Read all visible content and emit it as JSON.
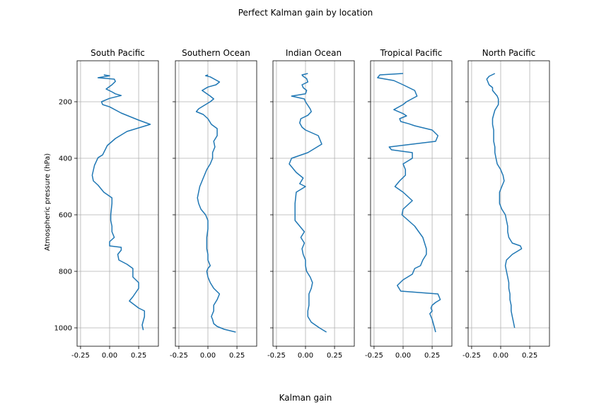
{
  "figure": {
    "suptitle": "Perfect Kalman gain by location",
    "xlabel": "Kalman gain",
    "ylabel": "Atmospheric pressure (hPa)"
  },
  "chart_data": {
    "type": "line",
    "title": "Perfect Kalman gain by location",
    "xlabel": "Kalman gain",
    "ylabel": "Atmospheric pressure (hPa)",
    "xlim": [
      -0.28,
      0.42
    ],
    "ylim": [
      1065,
      55
    ],
    "y_inverted": true,
    "xticks": [
      -0.25,
      0.0,
      0.25
    ],
    "xtick_labels": [
      "-0.25",
      "0.00",
      "0.25"
    ],
    "yticks": [
      200,
      400,
      600,
      800,
      1000
    ],
    "ytick_labels": [
      "200",
      "400",
      "600",
      "800",
      "1000"
    ],
    "grid": true,
    "color": "#1f77b4",
    "panels": [
      {
        "title": "South Pacific",
        "x": [
          -0.05,
          0.0,
          -0.1,
          0.04,
          0.05,
          0.02,
          -0.03,
          0.02,
          0.05,
          0.1,
          0.0,
          -0.07,
          -0.06,
          0.0,
          0.1,
          0.25,
          0.35,
          0.15,
          0.05,
          -0.02,
          -0.06,
          -0.1,
          -0.13,
          -0.15,
          -0.14,
          -0.1,
          -0.05,
          0.02,
          0.02,
          0.01,
          0.01,
          0.02,
          0.02,
          0.04,
          0.0,
          0.0,
          0.1,
          0.1,
          0.07,
          0.08,
          0.15,
          0.2,
          0.2,
          0.25,
          0.25,
          0.2,
          0.17,
          0.25,
          0.3,
          0.3,
          0.28,
          0.29
        ],
        "y": [
          105,
          108,
          115,
          120,
          128,
          140,
          155,
          165,
          172,
          178,
          188,
          200,
          210,
          218,
          240,
          265,
          280,
          305,
          330,
          355,
          388,
          398,
          425,
          460,
          480,
          495,
          520,
          540,
          560,
          600,
          620,
          640,
          660,
          680,
          695,
          710,
          715,
          725,
          740,
          760,
          775,
          790,
          820,
          840,
          860,
          890,
          905,
          930,
          940,
          960,
          990,
          1008
        ]
      },
      {
        "title": "Southern Ocean",
        "x": [
          0.0,
          -0.02,
          0.02,
          0.1,
          0.07,
          0.0,
          -0.05,
          0.02,
          0.05,
          0.02,
          -0.04,
          -0.08,
          -0.1,
          -0.04,
          0.0,
          0.03,
          0.08,
          0.08,
          0.05,
          0.06,
          0.04,
          0.04,
          0.02,
          -0.01,
          -0.04,
          -0.07,
          -0.09,
          -0.08,
          -0.06,
          -0.02,
          0.0,
          0.0,
          -0.01,
          -0.01,
          0.0,
          0.0,
          0.02,
          0.0,
          -0.01,
          0.0,
          0.02,
          0.05,
          0.1,
          0.08,
          0.05,
          0.05,
          0.03,
          0.04,
          0.05,
          0.08,
          0.14,
          0.24
        ],
        "y": [
          105,
          108,
          112,
          130,
          140,
          148,
          160,
          180,
          190,
          200,
          215,
          225,
          235,
          245,
          260,
          280,
          295,
          320,
          340,
          360,
          380,
          400,
          420,
          440,
          470,
          500,
          540,
          560,
          580,
          600,
          620,
          650,
          680,
          720,
          740,
          760,
          780,
          790,
          800,
          820,
          840,
          860,
          880,
          900,
          920,
          940,
          960,
          970,
          985,
          995,
          1005,
          1015
        ]
      },
      {
        "title": "Indian Ocean",
        "x": [
          0.02,
          -0.03,
          -0.02,
          0.01,
          0.02,
          -0.03,
          -0.02,
          0.01,
          0.0,
          -0.12,
          -0.01,
          0.0,
          0.04,
          0.05,
          0.02,
          -0.04,
          -0.05,
          -0.03,
          0.0,
          0.11,
          0.14,
          0.02,
          -0.12,
          -0.14,
          -0.08,
          -0.02,
          -0.05,
          0.0,
          -0.08,
          -0.09,
          -0.09,
          -0.09,
          -0.05,
          -0.01,
          -0.04,
          -0.01,
          -0.03,
          -0.02,
          0.0,
          0.0,
          0.01,
          0.04,
          0.06,
          0.05,
          0.03,
          0.03,
          0.03,
          0.02,
          0.02,
          0.05,
          0.12,
          0.18
        ],
        "y": [
          100,
          105,
          110,
          118,
          130,
          140,
          150,
          160,
          172,
          180,
          190,
          200,
          225,
          235,
          248,
          260,
          275,
          290,
          300,
          320,
          350,
          380,
          400,
          420,
          450,
          470,
          490,
          500,
          520,
          560,
          600,
          620,
          640,
          660,
          680,
          700,
          720,
          740,
          760,
          780,
          800,
          820,
          840,
          860,
          880,
          900,
          920,
          940,
          960,
          980,
          1000,
          1015
        ]
      },
      {
        "title": "Tropical Pacific",
        "x": [
          0.0,
          -0.2,
          -0.22,
          -0.08,
          0.0,
          0.1,
          0.12,
          0.03,
          0.0,
          -0.08,
          0.0,
          0.03,
          -0.03,
          -0.02,
          0.05,
          0.1,
          0.25,
          0.3,
          0.28,
          -0.12,
          -0.1,
          0.08,
          0.08,
          0.0,
          0.02,
          0.02,
          -0.03,
          -0.07,
          0.0,
          0.08,
          0.0,
          -0.01,
          0.1,
          0.17,
          0.2,
          0.2,
          0.17,
          0.15,
          0.1,
          0.08,
          0.0,
          -0.05,
          -0.02,
          0.3,
          0.32,
          0.28,
          0.25,
          0.24,
          0.25,
          0.23,
          0.25,
          0.27,
          0.28
        ],
        "y": [
          100,
          105,
          115,
          125,
          140,
          160,
          180,
          200,
          210,
          228,
          242,
          250,
          260,
          270,
          278,
          285,
          300,
          320,
          340,
          360,
          370,
          380,
          400,
          420,
          440,
          460,
          480,
          500,
          520,
          550,
          580,
          600,
          640,
          680,
          720,
          740,
          760,
          780,
          790,
          810,
          830,
          850,
          870,
          880,
          900,
          910,
          920,
          930,
          940,
          950,
          970,
          1000,
          1015
        ]
      },
      {
        "title": "North Pacific",
        "x": [
          -0.05,
          -0.1,
          -0.12,
          -0.1,
          -0.07,
          -0.07,
          -0.05,
          -0.03,
          -0.02,
          -0.02,
          -0.05,
          -0.06,
          -0.07,
          -0.07,
          -0.06,
          -0.06,
          -0.06,
          -0.05,
          -0.05,
          -0.04,
          -0.03,
          0.0,
          0.01,
          0.02,
          0.03,
          0.01,
          -0.01,
          -0.01,
          -0.01,
          0.01,
          0.04,
          0.05,
          0.06,
          0.06,
          0.07,
          0.1,
          0.17,
          0.18,
          0.1,
          0.05,
          0.04,
          0.05,
          0.06,
          0.07,
          0.07,
          0.08,
          0.08,
          0.09,
          0.09,
          0.1,
          0.11,
          0.12
        ],
        "y": [
          100,
          110,
          120,
          140,
          150,
          160,
          170,
          180,
          190,
          210,
          230,
          245,
          260,
          280,
          300,
          320,
          340,
          360,
          380,
          400,
          420,
          440,
          450,
          460,
          480,
          500,
          520,
          540,
          560,
          580,
          600,
          620,
          640,
          660,
          680,
          700,
          710,
          720,
          740,
          760,
          780,
          800,
          820,
          840,
          860,
          880,
          900,
          920,
          940,
          960,
          980,
          1000
        ]
      }
    ]
  }
}
